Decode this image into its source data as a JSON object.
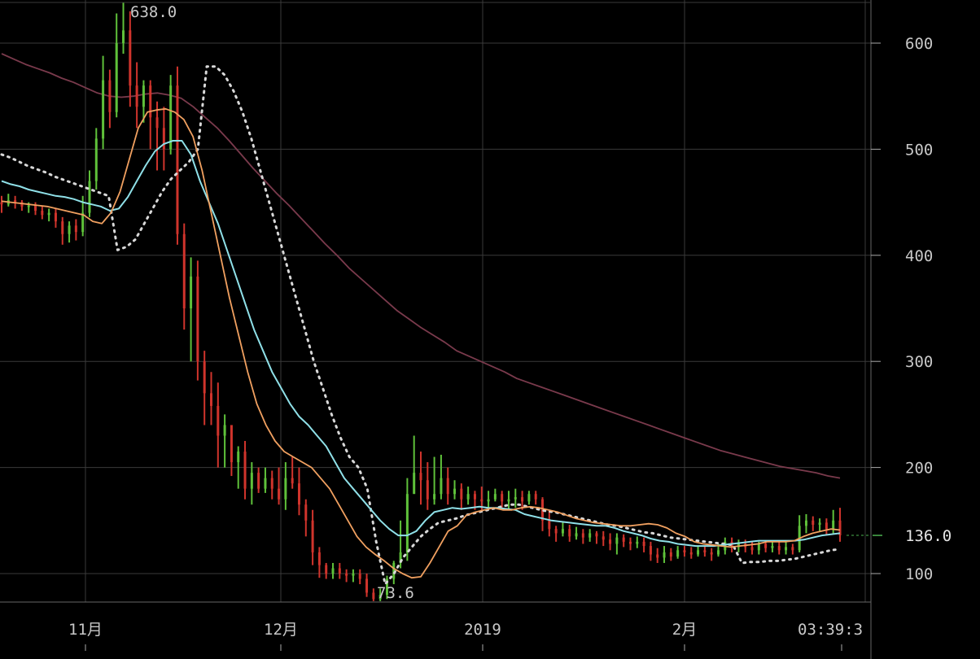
{
  "chart_data": {
    "type": "candlestick",
    "ylim": [
      70,
      640
    ],
    "y_ticks": [
      100,
      200,
      300,
      400,
      500,
      600
    ],
    "y_tick_labels": [
      "100",
      "200",
      "300",
      "400",
      "500",
      "600"
    ],
    "x_tick_labels": [
      "11月",
      "12月",
      "2019",
      "2月"
    ],
    "time_label": "03:39:3",
    "last_price_label": "136.0",
    "last_price": 136.0,
    "high_label": "638.0",
    "high_value": 638.0,
    "low_label": "73.6",
    "low_value": 73.6,
    "grid": true,
    "up_color": "#5fc13a",
    "down_color": "#d0342c",
    "ma_colors": {
      "fast": "#f0a060",
      "mid": "#8fe0e8",
      "slow": "#7a3a4c",
      "dotted": "#d8d8d8"
    },
    "candles": [
      [
        450,
        448,
        456,
        440
      ],
      [
        448,
        452,
        458,
        446
      ],
      [
        452,
        450,
        456,
        444
      ],
      [
        450,
        446,
        452,
        442
      ],
      [
        446,
        447,
        450,
        440
      ],
      [
        447,
        442,
        450,
        438
      ],
      [
        442,
        438,
        446,
        434
      ],
      [
        438,
        440,
        444,
        432
      ],
      [
        440,
        432,
        444,
        426
      ],
      [
        432,
        420,
        436,
        410
      ],
      [
        420,
        428,
        432,
        412
      ],
      [
        428,
        422,
        434,
        414
      ],
      [
        422,
        440,
        456,
        418
      ],
      [
        440,
        470,
        480,
        436
      ],
      [
        470,
        510,
        520,
        462
      ],
      [
        510,
        565,
        588,
        500
      ],
      [
        565,
        535,
        575,
        520
      ],
      [
        535,
        600,
        628,
        530
      ],
      [
        600,
        612,
        638,
        590
      ],
      [
        612,
        560,
        630,
        540
      ],
      [
        560,
        540,
        582,
        520
      ],
      [
        540,
        560,
        565,
        525
      ],
      [
        560,
        530,
        565,
        500
      ],
      [
        530,
        520,
        545,
        480
      ],
      [
        520,
        500,
        540,
        480
      ],
      [
        500,
        560,
        570,
        495
      ],
      [
        560,
        420,
        578,
        410
      ],
      [
        420,
        350,
        430,
        330
      ],
      [
        350,
        380,
        398,
        300
      ],
      [
        380,
        300,
        395,
        282
      ],
      [
        300,
        270,
        310,
        240
      ],
      [
        270,
        258,
        290,
        240
      ],
      [
        258,
        230,
        280,
        200
      ],
      [
        230,
        240,
        250,
        200
      ],
      [
        240,
        205,
        215,
        192
      ],
      [
        205,
        215,
        220,
        180
      ],
      [
        215,
        180,
        225,
        170
      ],
      [
        180,
        195,
        205,
        165
      ],
      [
        195,
        180,
        200,
        176
      ],
      [
        180,
        190,
        200,
        176
      ],
      [
        190,
        180,
        197,
        170
      ],
      [
        180,
        170,
        200,
        165
      ],
      [
        170,
        190,
        205,
        160
      ],
      [
        190,
        185,
        210,
        180
      ],
      [
        185,
        165,
        200,
        155
      ],
      [
        165,
        150,
        170,
        135
      ],
      [
        150,
        120,
        160,
        108
      ],
      [
        120,
        108,
        125,
        96
      ],
      [
        108,
        100,
        110,
        95
      ],
      [
        100,
        105,
        110,
        95
      ],
      [
        105,
        100,
        110,
        95
      ],
      [
        100,
        98,
        104,
        92
      ],
      [
        98,
        100,
        104,
        92
      ],
      [
        100,
        95,
        104,
        90
      ],
      [
        95,
        82,
        100,
        78
      ],
      [
        82,
        76,
        86,
        74
      ],
      [
        76,
        80,
        86,
        74
      ],
      [
        80,
        95,
        98,
        76
      ],
      [
        95,
        110,
        112,
        90
      ],
      [
        110,
        120,
        150,
        105
      ],
      [
        120,
        175,
        190,
        112
      ],
      [
        175,
        195,
        230,
        180
      ],
      [
        195,
        188,
        215,
        165
      ],
      [
        188,
        170,
        205,
        160
      ],
      [
        170,
        175,
        210,
        165
      ],
      [
        175,
        190,
        212,
        170
      ],
      [
        190,
        175,
        200,
        165
      ],
      [
        175,
        180,
        188,
        170
      ],
      [
        180,
        170,
        185,
        160
      ],
      [
        170,
        175,
        182,
        165
      ],
      [
        175,
        170,
        178,
        160
      ],
      [
        170,
        168,
        182,
        160
      ],
      [
        168,
        170,
        178,
        160
      ],
      [
        170,
        175,
        180,
        168
      ],
      [
        175,
        168,
        178,
        160
      ],
      [
        168,
        170,
        178,
        160
      ],
      [
        170,
        172,
        180,
        162
      ],
      [
        172,
        168,
        178,
        160
      ],
      [
        168,
        175,
        178,
        165
      ],
      [
        175,
        170,
        178,
        165
      ],
      [
        170,
        150,
        172,
        140
      ],
      [
        150,
        142,
        160,
        135
      ],
      [
        142,
        138,
        145,
        130
      ],
      [
        138,
        142,
        148,
        135
      ],
      [
        142,
        135,
        146,
        130
      ],
      [
        135,
        138,
        144,
        132
      ],
      [
        138,
        134,
        142,
        128
      ],
      [
        134,
        138,
        142,
        130
      ],
      [
        138,
        135,
        140,
        128
      ],
      [
        135,
        132,
        140,
        126
      ],
      [
        132,
        128,
        138,
        122
      ],
      [
        128,
        134,
        138,
        118
      ],
      [
        134,
        130,
        137,
        125
      ],
      [
        130,
        128,
        134,
        122
      ],
      [
        128,
        130,
        135,
        124
      ],
      [
        130,
        126,
        134,
        120
      ],
      [
        126,
        118,
        130,
        112
      ],
      [
        118,
        115,
        124,
        110
      ],
      [
        115,
        120,
        126,
        110
      ],
      [
        120,
        116,
        124,
        112
      ],
      [
        116,
        122,
        126,
        114
      ],
      [
        122,
        120,
        126,
        116
      ],
      [
        120,
        118,
        125,
        114
      ],
      [
        118,
        122,
        126,
        116
      ],
      [
        122,
        120,
        126,
        116
      ],
      [
        120,
        118,
        124,
        112
      ],
      [
        118,
        122,
        128,
        116
      ],
      [
        122,
        130,
        134,
        118
      ],
      [
        130,
        125,
        134,
        120
      ],
      [
        125,
        128,
        132,
        120
      ],
      [
        128,
        125,
        132,
        120
      ],
      [
        125,
        122,
        130,
        118
      ],
      [
        122,
        128,
        130,
        118
      ],
      [
        128,
        124,
        130,
        120
      ],
      [
        124,
        126,
        130,
        120
      ],
      [
        126,
        122,
        130,
        118
      ],
      [
        122,
        125,
        130,
        118
      ],
      [
        125,
        122,
        128,
        118
      ],
      [
        122,
        145,
        155,
        120
      ],
      [
        145,
        150,
        156,
        138
      ],
      [
        150,
        146,
        154,
        140
      ],
      [
        146,
        148,
        152,
        140
      ],
      [
        148,
        142,
        152,
        136
      ],
      [
        142,
        150,
        160,
        138
      ],
      [
        150,
        136,
        162,
        130
      ]
    ],
    "ma_fast": [
      451,
      450,
      449,
      448,
      447,
      446,
      444,
      442,
      440,
      438,
      432,
      430,
      440,
      460,
      490,
      520,
      535,
      537,
      538,
      535,
      528,
      512,
      480,
      440,
      400,
      360,
      325,
      290,
      260,
      240,
      225,
      215,
      210,
      205,
      200,
      190,
      180,
      165,
      150,
      135,
      125,
      118,
      112,
      105,
      100,
      96,
      97,
      110,
      125,
      140,
      145,
      155,
      158,
      160,
      162,
      160,
      160,
      162,
      163,
      162,
      160,
      158,
      155,
      152,
      150,
      148,
      147,
      146,
      145,
      145,
      146,
      147,
      146,
      143,
      138,
      135,
      130,
      128,
      127,
      126,
      125,
      126,
      127,
      128,
      130,
      130,
      130,
      131,
      135,
      138,
      140,
      142,
      141
    ],
    "ma_mid": [
      470,
      467,
      465,
      462,
      460,
      458,
      456,
      455,
      453,
      450,
      448,
      446,
      442,
      444,
      455,
      470,
      485,
      498,
      505,
      508,
      508,
      495,
      470,
      450,
      430,
      405,
      380,
      355,
      330,
      310,
      290,
      275,
      260,
      248,
      240,
      230,
      220,
      205,
      190,
      180,
      170,
      160,
      150,
      142,
      136,
      136,
      140,
      150,
      158,
      160,
      162,
      161,
      162,
      163,
      162,
      162,
      161,
      160,
      156,
      154,
      152,
      150,
      149,
      148,
      147,
      146,
      145,
      145,
      143,
      140,
      138,
      136,
      133,
      131,
      130,
      128,
      127,
      126,
      126,
      126,
      127,
      128,
      129,
      130,
      131,
      131,
      131,
      131,
      131,
      132,
      134,
      136,
      137,
      138
    ],
    "ma_slow": [
      590,
      585,
      580,
      576,
      572,
      567,
      563,
      558,
      553,
      550,
      549,
      550,
      552,
      553,
      551,
      548,
      540,
      530,
      520,
      508,
      495,
      482,
      470,
      458,
      447,
      435,
      423,
      411,
      400,
      388,
      378,
      368,
      358,
      348,
      340,
      332,
      325,
      318,
      310,
      305,
      300,
      295,
      290,
      284,
      280,
      276,
      272,
      268,
      264,
      260,
      256,
      252,
      248,
      244,
      240,
      236,
      232,
      228,
      224,
      220,
      216,
      213,
      210,
      207,
      204,
      201,
      199,
      197,
      195,
      192,
      190
    ],
    "ma_dotted": [
      495,
      492,
      488,
      484,
      481,
      478,
      474,
      471,
      468,
      465,
      462,
      459,
      456,
      405,
      408,
      415,
      430,
      445,
      460,
      472,
      480,
      488,
      500,
      578,
      578,
      570,
      555,
      535,
      510,
      480,
      450,
      420,
      390,
      360,
      330,
      300,
      275,
      250,
      228,
      210,
      200,
      180,
      130,
      90,
      100,
      115,
      125,
      135,
      142,
      148,
      150,
      152,
      155,
      157,
      159,
      161,
      163,
      165,
      165,
      163,
      161,
      159,
      158,
      156,
      154,
      152,
      150,
      148,
      146,
      145,
      143,
      141,
      139,
      138,
      136,
      134,
      133,
      132,
      131,
      130,
      129,
      128,
      127,
      110,
      111,
      111,
      112,
      112,
      113,
      114,
      116,
      118,
      120,
      122,
      123
    ]
  }
}
